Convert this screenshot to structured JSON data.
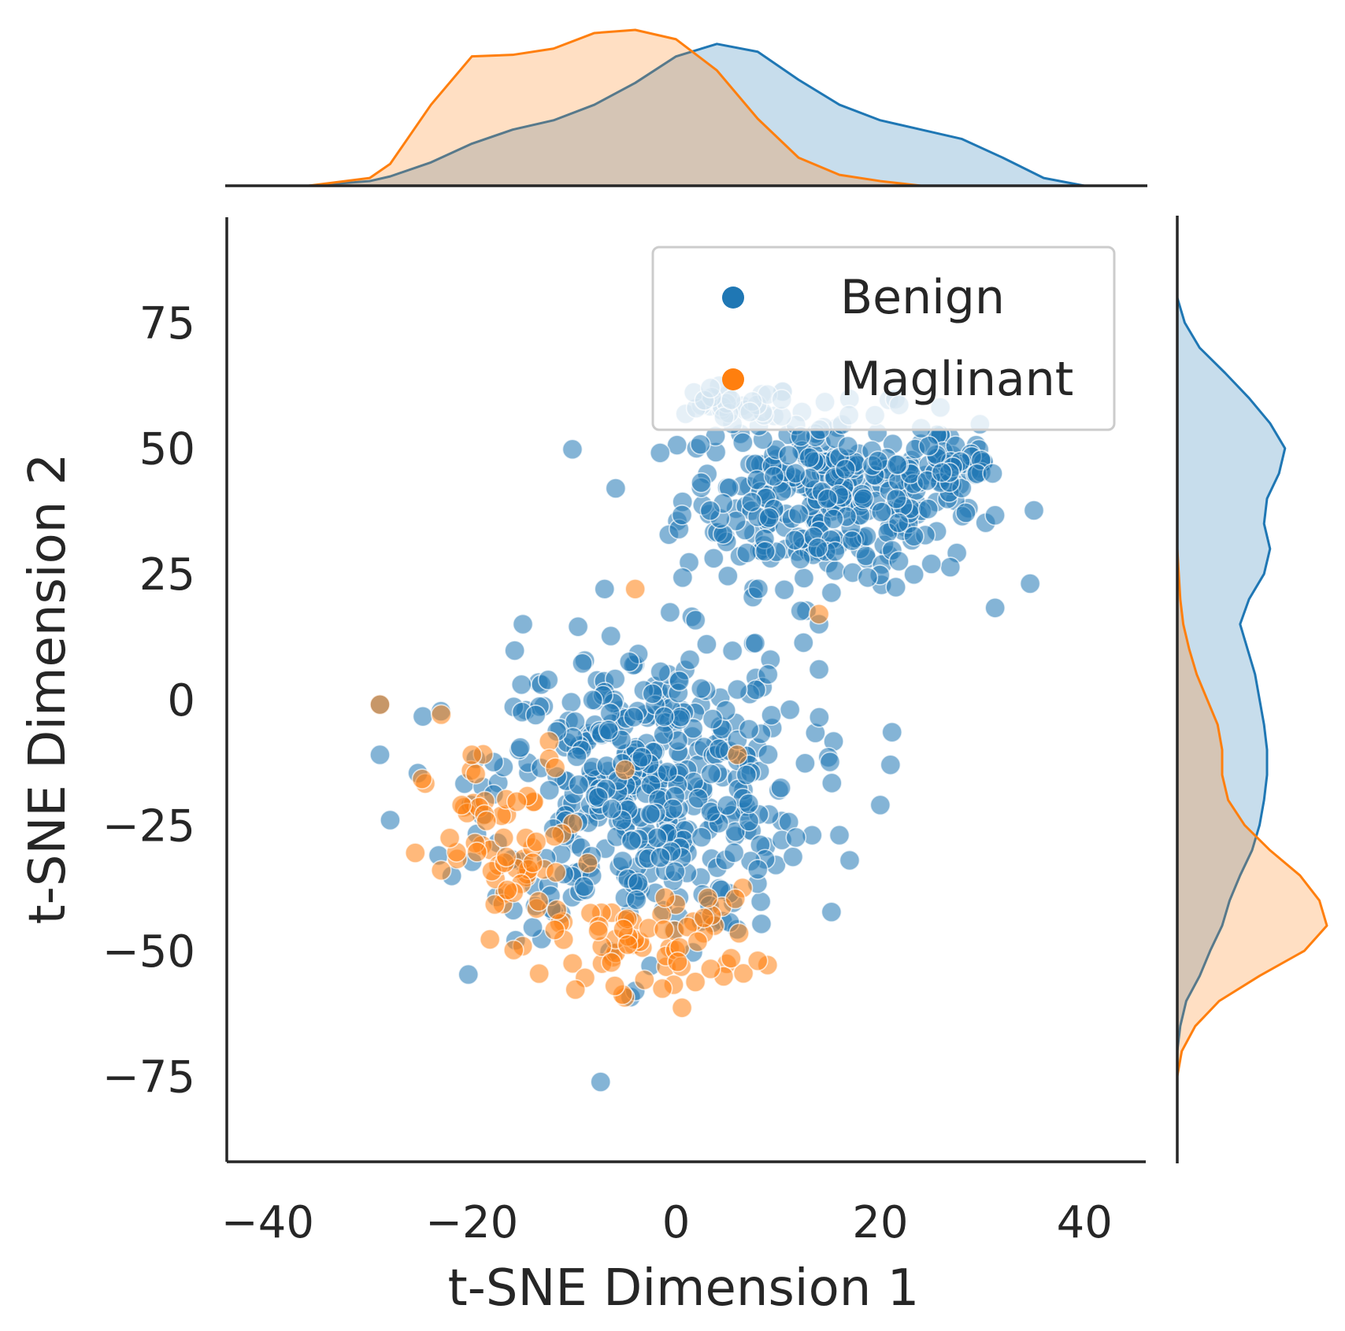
{
  "chart_data": {
    "type": "scatter",
    "subtype": "jointplot with marginal kde",
    "xlabel": "t-SNE Dimension 1",
    "ylabel": "t-SNE Dimension 2",
    "xlim": [
      -44,
      46
    ],
    "ylim": [
      -92,
      96
    ],
    "xticks": [
      -40,
      -20,
      0,
      20,
      40
    ],
    "yticks": [
      75,
      50,
      25,
      0,
      -25,
      -50,
      -75
    ],
    "xtick_labels": [
      "−40",
      "−20",
      "0",
      "20",
      "40"
    ],
    "ytick_labels": [
      "75",
      "50",
      "25",
      "0",
      "−25",
      "−50",
      "−75"
    ],
    "grid": false,
    "legend_position": "top-right",
    "series": [
      {
        "name": "Benign",
        "color": "#1f77b4",
        "clusters": [
          {
            "cx": 15,
            "cy": 40,
            "sx": 8.5,
            "sy": 10,
            "n": 330
          },
          {
            "cx": 27,
            "cy": 47,
            "sx": 3,
            "sy": 4,
            "n": 40
          },
          {
            "cx": 5,
            "cy": 58,
            "sx": 4,
            "sy": 2.5,
            "n": 30
          },
          {
            "cx": -3,
            "cy": -18,
            "sx": 9,
            "sy": 17,
            "n": 440
          }
        ],
        "sample_points": [
          [
            -29,
            -1
          ],
          [
            -29,
            -11
          ],
          [
            -28,
            -24
          ],
          [
            3,
            11
          ],
          [
            6,
            2
          ],
          [
            16,
            -27
          ],
          [
            17,
            -32
          ],
          [
            21,
            -13
          ],
          [
            20,
            -21
          ],
          [
            25,
            27
          ],
          [
            24,
            54
          ],
          [
            31,
            45
          ],
          [
            -4,
            -58
          ],
          [
            -7,
            22
          ],
          [
            -15,
            15
          ],
          [
            14,
            15
          ],
          [
            9,
            5
          ],
          [
            14,
            6
          ]
        ]
      },
      {
        "name": "Maglinant",
        "color": "#ff7f0e",
        "clusters": [
          {
            "cx": -16,
            "cy": -32,
            "sx": 5,
            "sy": 13,
            "n": 65
          },
          {
            "cx": -2,
            "cy": -48,
            "sx": 6,
            "sy": 6,
            "n": 65
          }
        ],
        "sample_points": [
          [
            -29,
            -1
          ],
          [
            -23,
            -3
          ],
          [
            -20,
            -11
          ],
          [
            -21,
            -21
          ],
          [
            -23,
            -34
          ],
          [
            -4,
            22
          ],
          [
            14,
            17
          ],
          [
            6,
            -11
          ],
          [
            8,
            -52
          ],
          [
            -6,
            -57
          ],
          [
            -5,
            -14
          ]
        ]
      }
    ],
    "marginal_x_kde": {
      "x": [
        -36,
        -30,
        -28,
        -24,
        -20,
        -16,
        -12,
        -8,
        -4,
        0,
        4,
        8,
        12,
        16,
        20,
        24,
        28,
        32,
        36,
        40
      ],
      "Benign": [
        0.0,
        0.03,
        0.06,
        0.15,
        0.27,
        0.36,
        0.42,
        0.52,
        0.66,
        0.83,
        0.91,
        0.86,
        0.68,
        0.52,
        0.42,
        0.36,
        0.3,
        0.18,
        0.05,
        0.0
      ],
      "Maglinant": [
        0.0,
        0.05,
        0.14,
        0.52,
        0.83,
        0.84,
        0.88,
        0.98,
        1.0,
        0.94,
        0.74,
        0.43,
        0.18,
        0.07,
        0.03,
        0.0,
        0.0,
        0.0,
        0.0,
        0.0
      ]
    },
    "marginal_y_kde": {
      "y": [
        -75,
        -70,
        -65,
        -60,
        -55,
        -50,
        -45,
        -40,
        -35,
        -30,
        -25,
        -20,
        -15,
        -10,
        -5,
        0,
        5,
        10,
        15,
        20,
        25,
        30,
        35,
        40,
        45,
        50,
        55,
        60,
        65,
        70,
        75,
        80
      ],
      "Benign": [
        0.0,
        0.0,
        0.02,
        0.06,
        0.15,
        0.22,
        0.3,
        0.35,
        0.42,
        0.5,
        0.55,
        0.58,
        0.6,
        0.6,
        0.58,
        0.55,
        0.52,
        0.47,
        0.42,
        0.48,
        0.58,
        0.62,
        0.58,
        0.6,
        0.68,
        0.72,
        0.62,
        0.48,
        0.32,
        0.15,
        0.05,
        0.0
      ],
      "Maglinant": [
        0.0,
        0.03,
        0.12,
        0.28,
        0.55,
        0.85,
        1.0,
        0.95,
        0.82,
        0.62,
        0.45,
        0.34,
        0.3,
        0.3,
        0.27,
        0.2,
        0.13,
        0.08,
        0.04,
        0.02,
        0.01,
        0.0,
        0.0,
        0.0,
        0.0,
        0.0,
        0.0,
        0.0,
        0.0,
        0.0,
        0.0,
        0.0
      ]
    }
  }
}
